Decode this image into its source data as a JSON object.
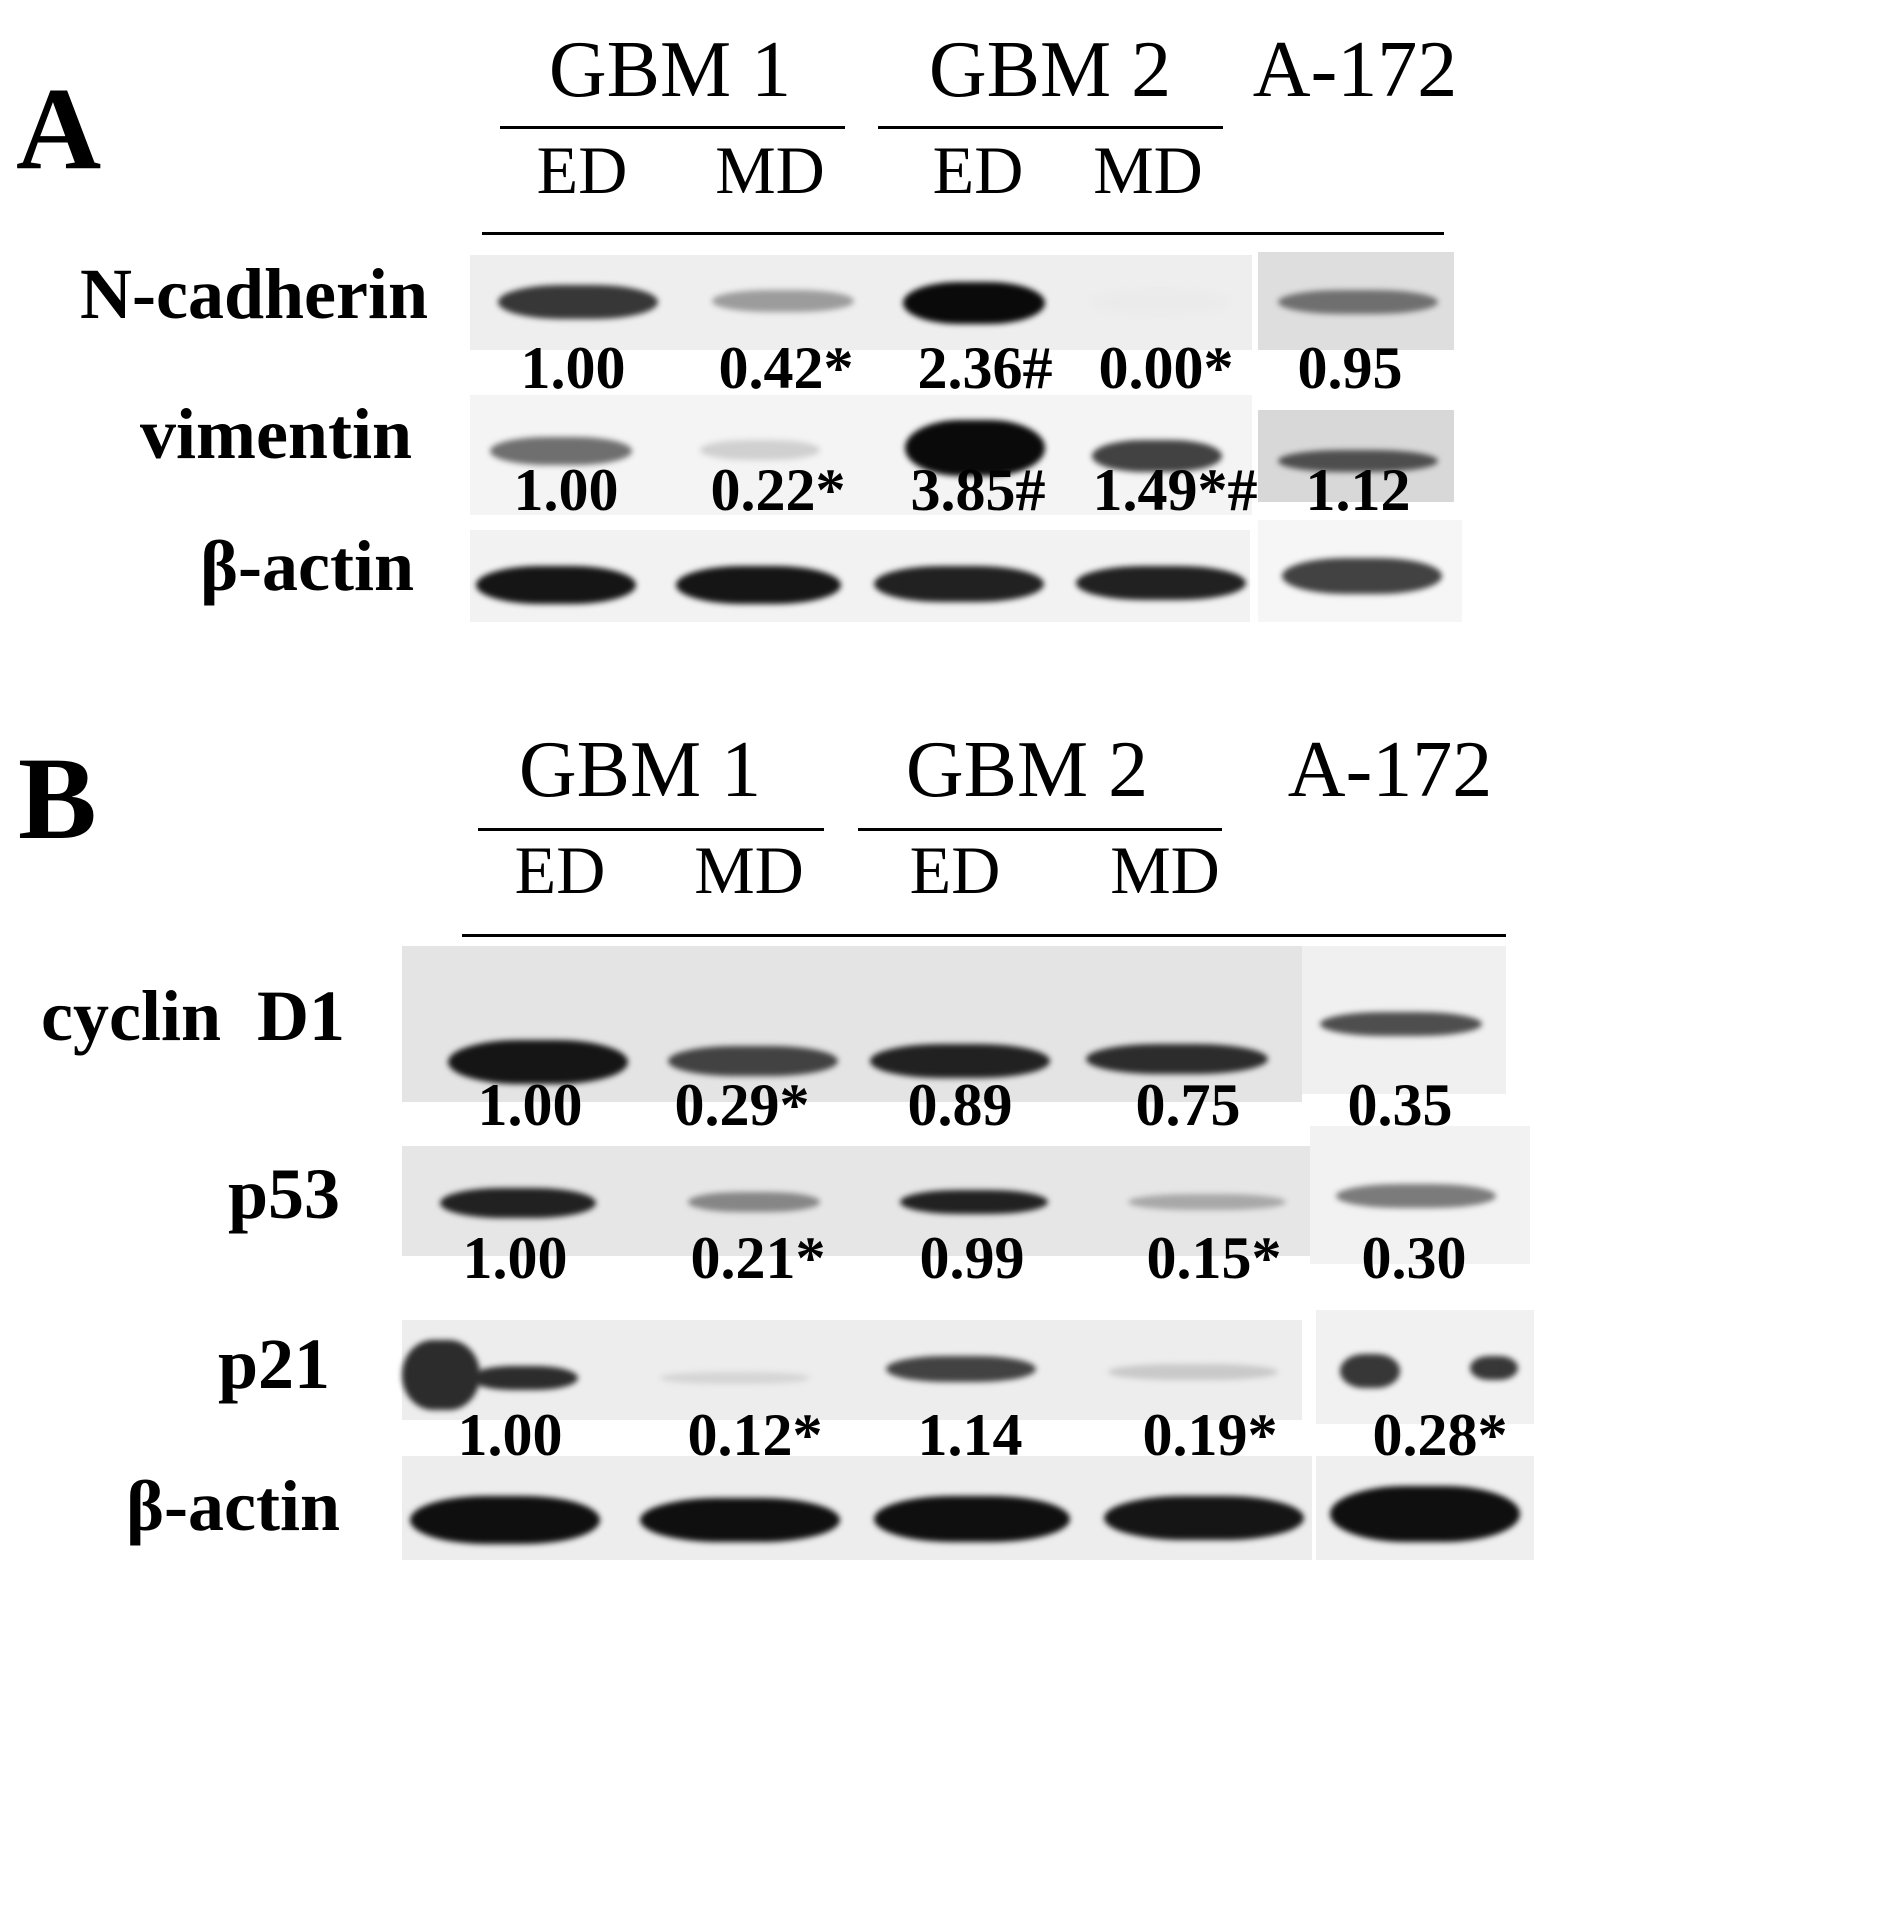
{
  "panels": [
    {
      "letter": "A",
      "groups": [
        {
          "label": "GBM 1",
          "lanes": [
            "ED",
            "MD"
          ]
        },
        {
          "label": "GBM 2",
          "lanes": [
            "ED",
            "MD"
          ]
        },
        {
          "label": "A-172",
          "lanes": []
        }
      ],
      "rows": [
        {
          "protein": "N-cadherin",
          "values": [
            "1.00",
            "0.42*",
            "2.36#",
            "0.00*",
            "0.95"
          ],
          "band_intensity": [
            0.8,
            0.35,
            1.0,
            0.0,
            0.55
          ]
        },
        {
          "protein": "vimentin",
          "values": [
            "1.00",
            "0.22*",
            "3.85#",
            "1.49*#",
            "1.12"
          ],
          "band_intensity": [
            0.55,
            0.12,
            1.0,
            0.75,
            0.7
          ]
        },
        {
          "protein": "β-actin",
          "values": [],
          "band_intensity": [
            0.95,
            0.95,
            0.9,
            0.9,
            0.75
          ]
        }
      ]
    },
    {
      "letter": "B",
      "groups": [
        {
          "label": "GBM 1",
          "lanes": [
            "ED",
            "MD"
          ]
        },
        {
          "label": "GBM 2",
          "lanes": [
            "ED",
            "MD"
          ]
        },
        {
          "label": "A-172",
          "lanes": []
        }
      ],
      "rows": [
        {
          "protein": "cyclin  D1",
          "values": [
            "1.00",
            "0.29*",
            "0.89",
            "0.75",
            "0.35"
          ],
          "band_intensity": [
            0.95,
            0.75,
            0.9,
            0.85,
            0.7
          ]
        },
        {
          "protein": "p53",
          "values": [
            "1.00",
            "0.21*",
            "0.99",
            "0.15*",
            "0.30"
          ],
          "band_intensity": [
            0.9,
            0.45,
            0.9,
            0.3,
            0.5
          ]
        },
        {
          "protein": "p21",
          "values": [
            "1.00",
            "0.12*",
            "1.14",
            "0.19*",
            "0.28*"
          ],
          "band_intensity": [
            0.85,
            0.1,
            0.75,
            0.15,
            0.8
          ]
        },
        {
          "protein": "β-actin",
          "values": [],
          "band_intensity": [
            0.98,
            0.98,
            0.98,
            0.95,
            0.98
          ]
        }
      ]
    }
  ],
  "colors": {
    "ink": "#000000",
    "membrane": "#eeeeee",
    "membrane_alt": "#f4f4f4",
    "band": "#0a0a0a"
  }
}
